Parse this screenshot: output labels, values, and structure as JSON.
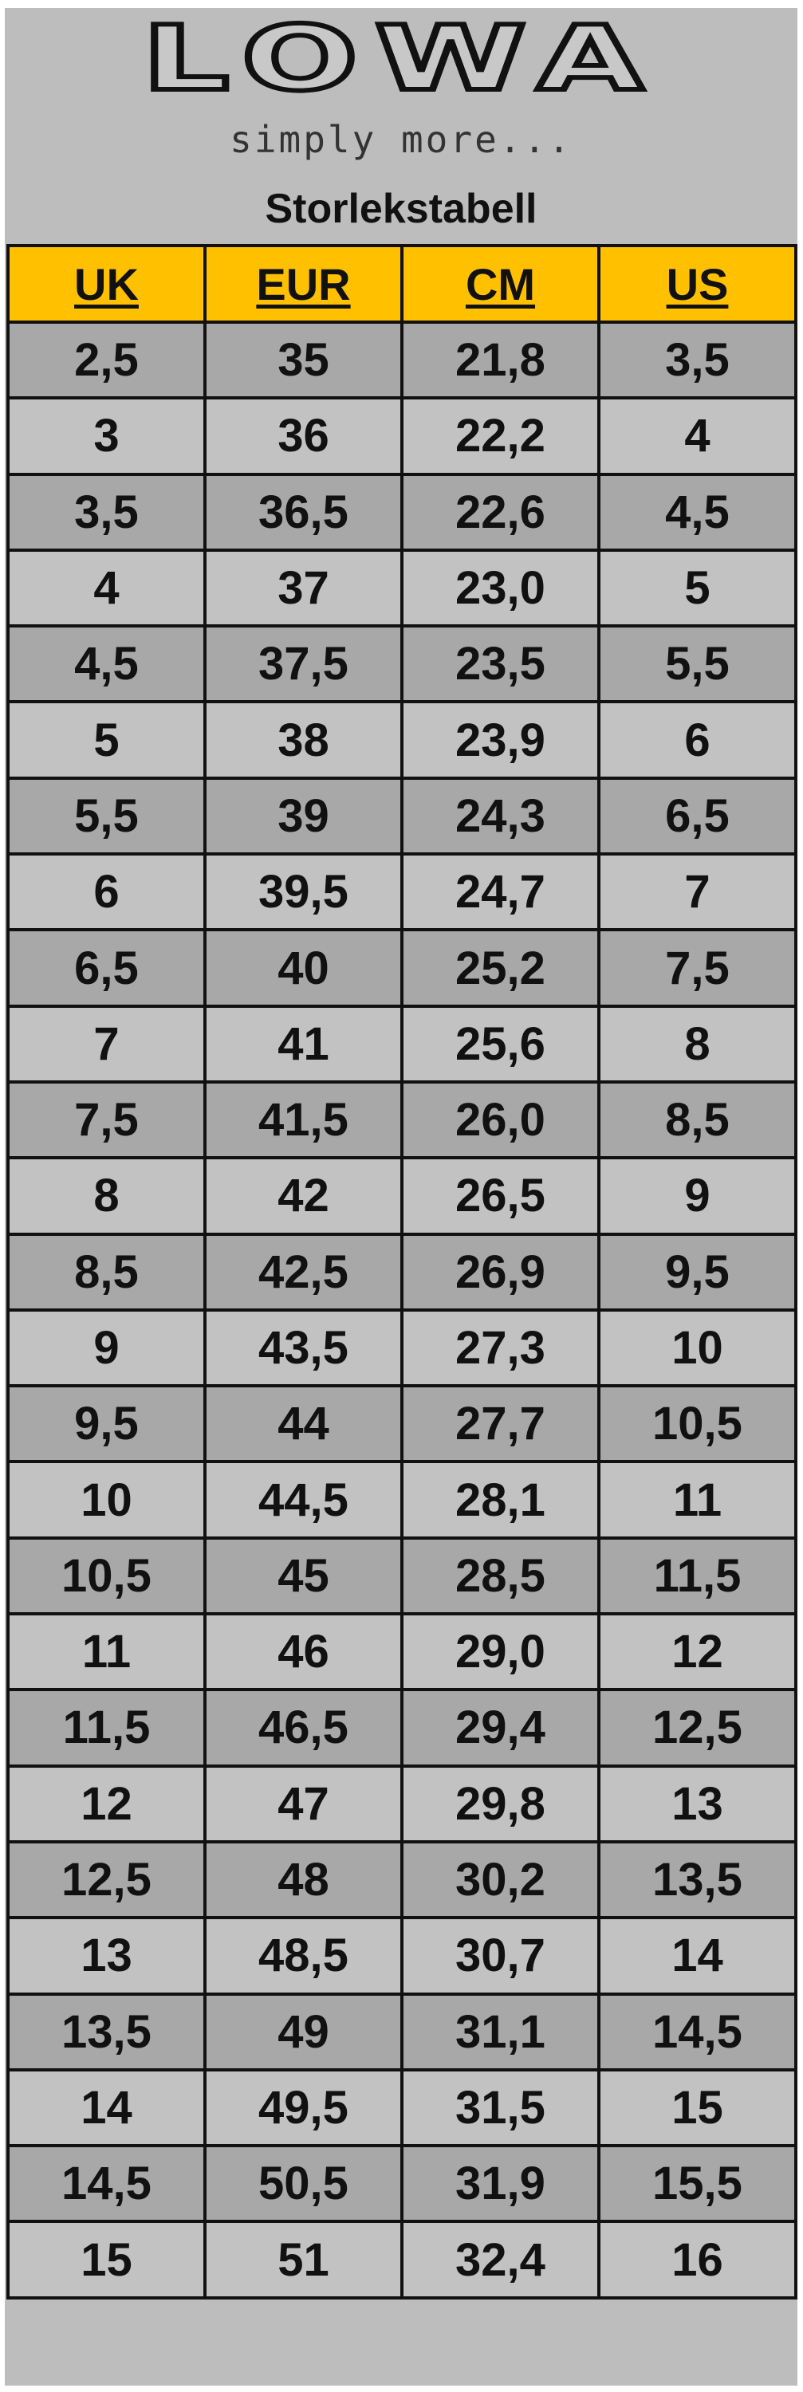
{
  "logo": {
    "text": "LOWA"
  },
  "tagline": "simply more...",
  "title": "Storlekstabell",
  "colors": {
    "header": "#ffc000",
    "row_dark": "#a8a8a8",
    "row_light": "#c2c2c2",
    "background": "#bdbdbd"
  },
  "table": {
    "headers": [
      "UK",
      "EUR",
      "CM",
      "US"
    ],
    "rows": [
      [
        "2,5",
        "35",
        "21,8",
        "3,5"
      ],
      [
        "3",
        "36",
        "22,2",
        "4"
      ],
      [
        "3,5",
        "36,5",
        "22,6",
        "4,5"
      ],
      [
        "4",
        "37",
        "23,0",
        "5"
      ],
      [
        "4,5",
        "37,5",
        "23,5",
        "5,5"
      ],
      [
        "5",
        "38",
        "23,9",
        "6"
      ],
      [
        "5,5",
        "39",
        "24,3",
        "6,5"
      ],
      [
        "6",
        "39,5",
        "24,7",
        "7"
      ],
      [
        "6,5",
        "40",
        "25,2",
        "7,5"
      ],
      [
        "7",
        "41",
        "25,6",
        "8"
      ],
      [
        "7,5",
        "41,5",
        "26,0",
        "8,5"
      ],
      [
        "8",
        "42",
        "26,5",
        "9"
      ],
      [
        "8,5",
        "42,5",
        "26,9",
        "9,5"
      ],
      [
        "9",
        "43,5",
        "27,3",
        "10"
      ],
      [
        "9,5",
        "44",
        "27,7",
        "10,5"
      ],
      [
        "10",
        "44,5",
        "28,1",
        "11"
      ],
      [
        "10,5",
        "45",
        "28,5",
        "11,5"
      ],
      [
        "11",
        "46",
        "29,0",
        "12"
      ],
      [
        "11,5",
        "46,5",
        "29,4",
        "12,5"
      ],
      [
        "12",
        "47",
        "29,8",
        "13"
      ],
      [
        "12,5",
        "48",
        "30,2",
        "13,5"
      ],
      [
        "13",
        "48,5",
        "30,7",
        "14"
      ],
      [
        "13,5",
        "49",
        "31,1",
        "14,5"
      ],
      [
        "14",
        "49,5",
        "31,5",
        "15"
      ],
      [
        "14,5",
        "50,5",
        "31,9",
        "15,5"
      ],
      [
        "15",
        "51",
        "32,4",
        "16"
      ]
    ]
  }
}
